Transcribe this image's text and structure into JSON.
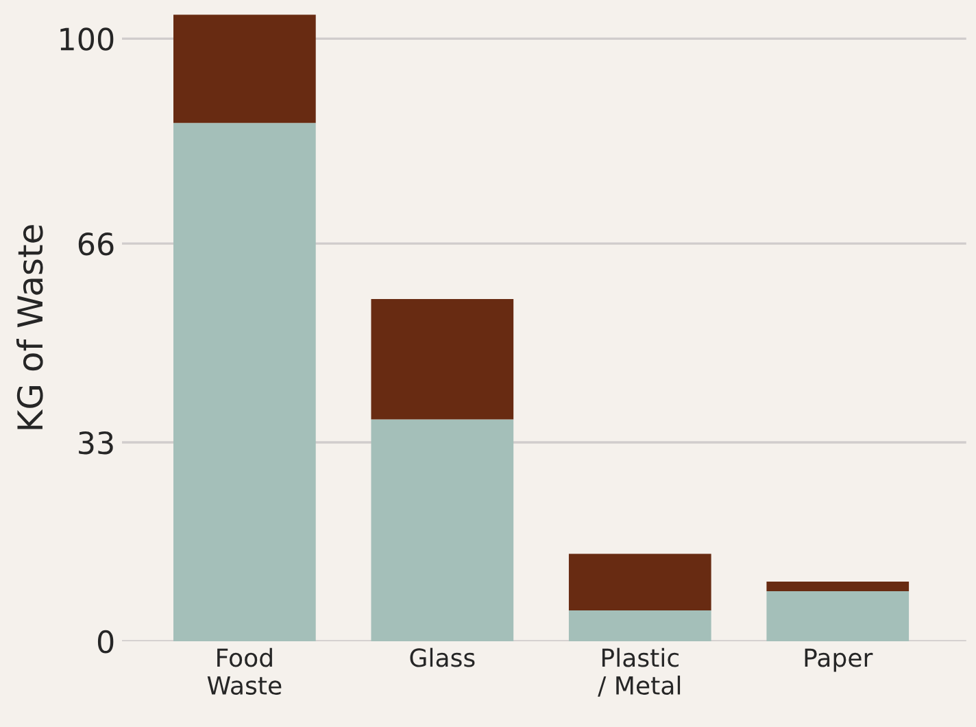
{
  "chart_data": {
    "type": "bar",
    "ylabel": "KG of Waste",
    "stacked": true,
    "categories": [
      "Food\nWaste",
      "Glass",
      "Plastic\n/ Metal",
      "Paper"
    ],
    "series": [
      {
        "color": "#a4bfb9",
        "values": [
          86,
          36.8,
          5.1,
          8.3
        ]
      },
      {
        "color": "#682b12",
        "values": [
          18,
          20,
          9.4,
          1.6
        ]
      }
    ],
    "ylim": [
      0,
      104
    ],
    "yticks": [
      0,
      33,
      66,
      100
    ],
    "grid": "y",
    "legend": false
  }
}
